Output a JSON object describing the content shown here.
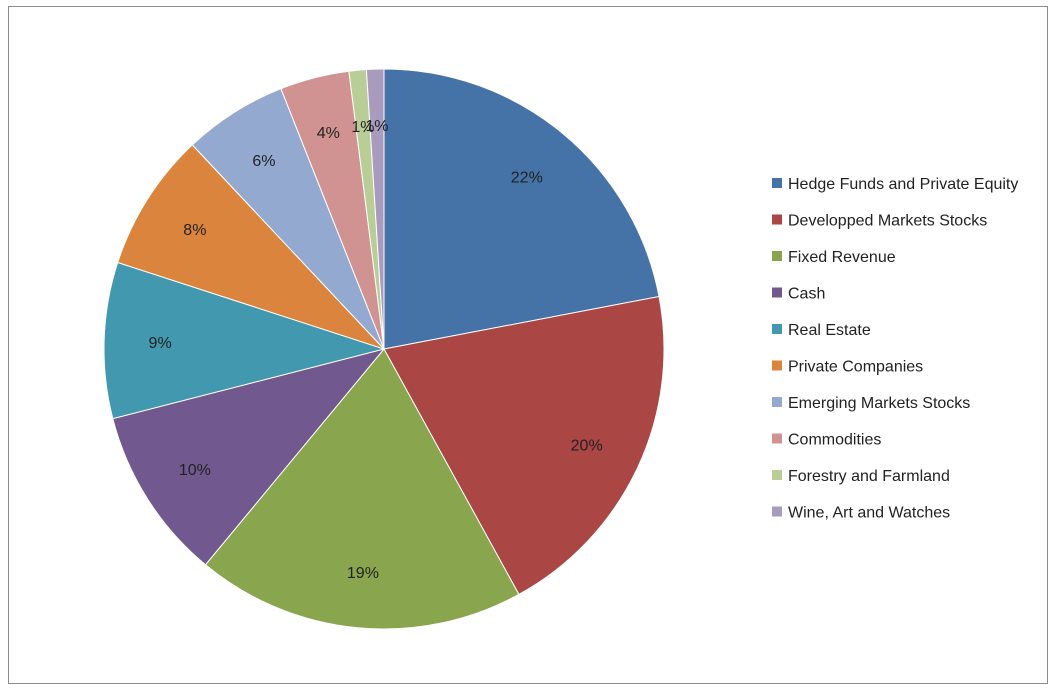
{
  "chart_data": {
    "type": "pie",
    "title": "",
    "legend_position": "right",
    "categories": [
      "Hedge Funds and Private Equity",
      "Developped Markets Stocks",
      "Fixed Revenue",
      "Cash",
      "Real Estate",
      "Private Companies",
      "Emerging Markets Stocks",
      "Commodities",
      "Forestry and Farmland",
      "Wine, Art and Watches"
    ],
    "values": [
      22,
      20,
      19,
      10,
      9,
      8,
      6,
      4,
      1,
      1
    ],
    "labels": [
      "22%",
      "20%",
      "19%",
      "10%",
      "9%",
      "8%",
      "6%",
      "4%",
      "1%",
      "1%"
    ],
    "colors": [
      "#4572a7",
      "#aa4643",
      "#89a54e",
      "#71588f",
      "#4198af",
      "#db843d",
      "#93a9cf",
      "#d19392",
      "#b9cd96",
      "#a99bbd"
    ]
  }
}
